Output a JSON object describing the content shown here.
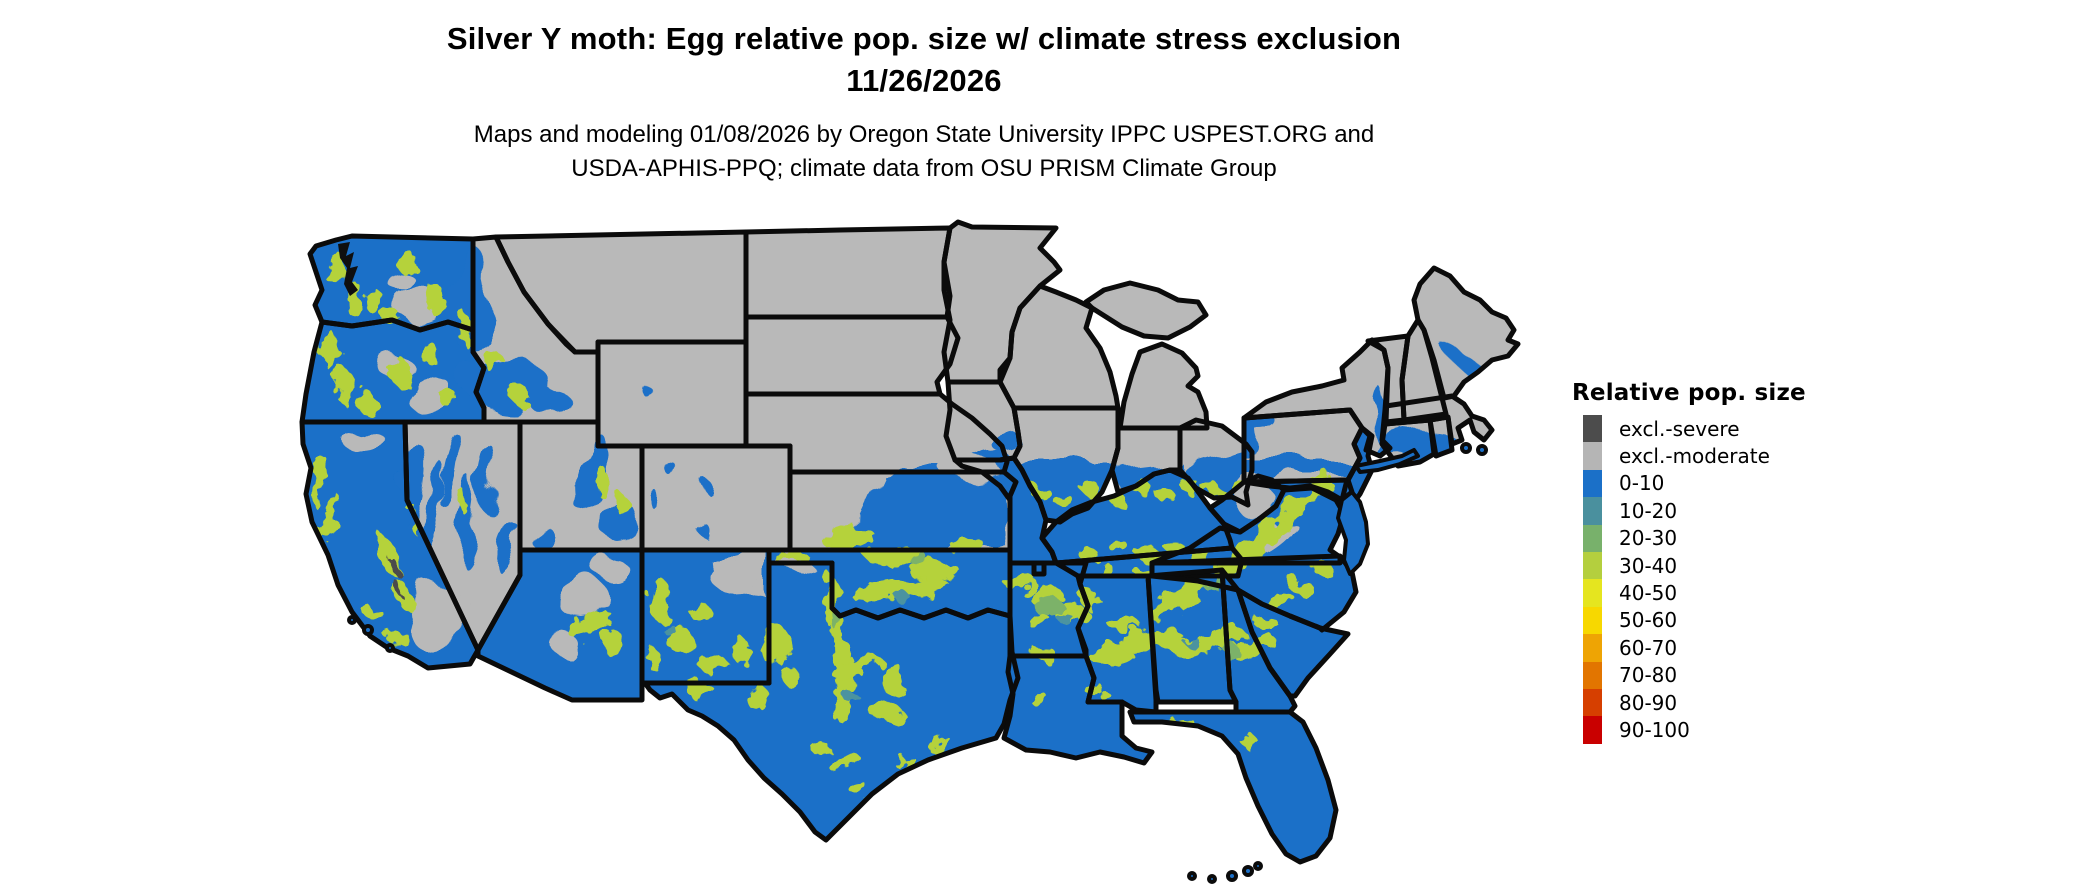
{
  "header": {
    "title_line1": "Silver Y moth: Egg relative pop. size w/ climate stress exclusion",
    "title_line2": "11/26/2026",
    "subtitle_line1": "Maps and modeling 01/08/2026 by Oregon State University IPPC USPEST.ORG and",
    "subtitle_line2": "USDA-APHIS-PPQ; climate data from OSU PRISM Climate Group"
  },
  "legend": {
    "title": "Relative pop. size",
    "items": [
      {
        "label": "excl.-severe",
        "color": "#4c4c4c"
      },
      {
        "label": "excl.-moderate",
        "color": "#b5b5b5"
      },
      {
        "label": "0-10",
        "color": "#1b70c8"
      },
      {
        "label": "10-20",
        "color": "#4a909e"
      },
      {
        "label": "20-30",
        "color": "#78b16b"
      },
      {
        "label": "30-40",
        "color": "#b4cf3e"
      },
      {
        "label": "40-50",
        "color": "#e5e51f"
      },
      {
        "label": "50-60",
        "color": "#f7d800"
      },
      {
        "label": "60-70",
        "color": "#eea404"
      },
      {
        "label": "70-80",
        "color": "#e27500"
      },
      {
        "label": "80-90",
        "color": "#d63f00"
      },
      {
        "label": "90-100",
        "color": "#c90000"
      }
    ]
  },
  "map_colors": {
    "active_base": "#1b70c8",
    "excluded_moderate": "#b9b9b9",
    "excluded_severe": "#4c4c4c",
    "pop_30_40": "#b5d23a",
    "pop_20_30": "#7cb269",
    "pop_10_20": "#4b93a0",
    "state_border": "#0b0b0b",
    "water": "#ffffff"
  }
}
